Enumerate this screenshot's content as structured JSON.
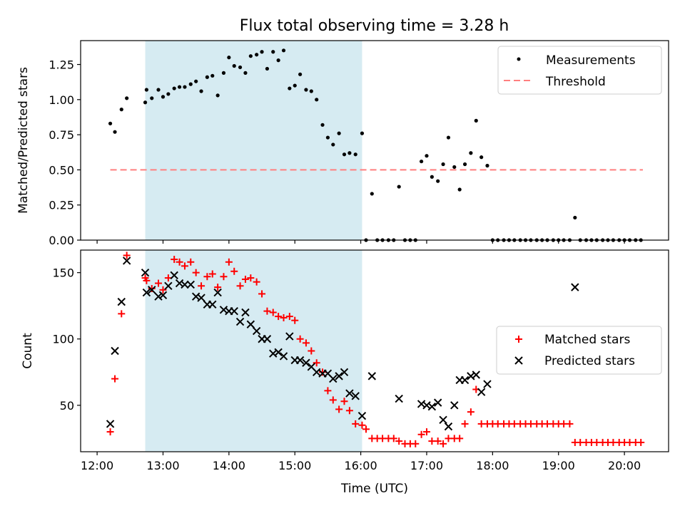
{
  "title": "Flux total observing time = 3.28 h",
  "shaded_window": {
    "start": 12.73,
    "end": 16.02,
    "color": "#add8e6"
  },
  "chart_data": [
    {
      "type": "scatter",
      "ylabel": "Matched/Predicted stars",
      "xlim": [
        11.75,
        20.67
      ],
      "ylim": [
        0,
        1.42
      ],
      "yticks": [
        0.0,
        0.25,
        0.5,
        0.75,
        1.0,
        1.25
      ],
      "ytick_labels": [
        "0.00",
        "0.25",
        "0.50",
        "0.75",
        "1.00",
        "1.25"
      ],
      "legend_position": "top-right",
      "threshold": {
        "name": "Threshold",
        "value": 0.5,
        "x_start": 12.2,
        "x_end": 20.28,
        "color": "#ff7f7f"
      },
      "series": [
        {
          "name": "Measurements",
          "color": "#000000",
          "x": [
            12.2,
            12.27,
            12.37,
            12.45,
            12.73,
            12.75,
            12.83,
            12.93,
            13.0,
            13.08,
            13.17,
            13.25,
            13.33,
            13.42,
            13.5,
            13.58,
            13.67,
            13.75,
            13.83,
            13.92,
            14.0,
            14.08,
            14.17,
            14.25,
            14.33,
            14.42,
            14.5,
            14.58,
            14.67,
            14.75,
            14.83,
            14.92,
            15.0,
            15.08,
            15.17,
            15.25,
            15.33,
            15.42,
            15.5,
            15.58,
            15.67,
            15.75,
            15.83,
            15.92,
            16.02,
            16.08,
            16.17,
            16.25,
            16.33,
            16.42,
            16.5,
            16.58,
            16.67,
            16.75,
            16.83,
            16.92,
            17.0,
            17.08,
            17.17,
            17.25,
            17.33,
            17.42,
            17.5,
            17.58,
            17.67,
            17.75,
            17.83,
            17.92,
            18.0,
            18.08,
            18.17,
            18.25,
            18.33,
            18.42,
            18.5,
            18.58,
            18.67,
            18.75,
            18.83,
            18.92,
            19.0,
            19.08,
            19.17,
            19.25,
            19.33,
            19.42,
            19.5,
            19.58,
            19.67,
            19.75,
            19.83,
            19.92,
            20.0,
            20.08,
            20.17,
            20.25
          ],
          "y": [
            0.83,
            0.77,
            0.93,
            1.01,
            0.98,
            1.07,
            1.01,
            1.07,
            1.02,
            1.04,
            1.08,
            1.09,
            1.09,
            1.11,
            1.13,
            1.06,
            1.16,
            1.17,
            1.03,
            1.19,
            1.3,
            1.24,
            1.23,
            1.19,
            1.31,
            1.32,
            1.34,
            1.22,
            1.34,
            1.28,
            1.35,
            1.08,
            1.1,
            1.18,
            1.07,
            1.06,
            1.0,
            0.82,
            0.73,
            0.68,
            0.76,
            0.61,
            0.62,
            0.61,
            0.76,
            0.0,
            0.33,
            0.0,
            0.0,
            0.0,
            0.0,
            0.38,
            0.0,
            0.0,
            0.0,
            0.56,
            0.6,
            0.45,
            0.42,
            0.54,
            0.73,
            0.52,
            0.36,
            0.54,
            0.62,
            0.85,
            0.59,
            0.53,
            0.0,
            0.0,
            0.0,
            0.0,
            0.0,
            0.0,
            0.0,
            0.0,
            0.0,
            0.0,
            0.0,
            0.0,
            0.0,
            0.0,
            0.0,
            0.16,
            0.0,
            0.0,
            0.0,
            0.0,
            0.0,
            0.0,
            0.0,
            0.0,
            0.0,
            0.0,
            0.0,
            0.0
          ]
        }
      ]
    },
    {
      "type": "scatter",
      "xlabel": "Time (UTC)",
      "ylabel": "Count",
      "xlim": [
        11.75,
        20.67
      ],
      "ylim": [
        15,
        167
      ],
      "xticks": [
        12,
        13,
        14,
        15,
        16,
        17,
        18,
        19,
        20
      ],
      "xtick_labels": [
        "12:00",
        "13:00",
        "14:00",
        "15:00",
        "16:00",
        "17:00",
        "18:00",
        "19:00",
        "20:00"
      ],
      "yticks": [
        50,
        100,
        150
      ],
      "ytick_labels": [
        "50",
        "100",
        "150"
      ],
      "legend_position": "center-right",
      "series": [
        {
          "name": "Matched stars",
          "marker": "+",
          "color": "#ff0000",
          "x": [
            12.2,
            12.27,
            12.37,
            12.45,
            12.73,
            12.75,
            12.83,
            12.93,
            13.0,
            13.08,
            13.17,
            13.25,
            13.33,
            13.42,
            13.5,
            13.58,
            13.67,
            13.75,
            13.83,
            13.92,
            14.0,
            14.08,
            14.17,
            14.25,
            14.33,
            14.42,
            14.5,
            14.58,
            14.67,
            14.75,
            14.83,
            14.92,
            15.0,
            15.08,
            15.17,
            15.25,
            15.33,
            15.42,
            15.5,
            15.58,
            15.67,
            15.75,
            15.83,
            15.92,
            16.02,
            16.08,
            16.17,
            16.25,
            16.33,
            16.42,
            16.5,
            16.58,
            16.67,
            16.75,
            16.83,
            16.92,
            17.0,
            17.08,
            17.17,
            17.25,
            17.33,
            17.42,
            17.5,
            17.58,
            17.67,
            17.75,
            17.83,
            17.92,
            18.0,
            18.08,
            18.17,
            18.25,
            18.33,
            18.42,
            18.5,
            18.58,
            18.67,
            18.75,
            18.83,
            18.92,
            19.0,
            19.08,
            19.17,
            19.25,
            19.33,
            19.42,
            19.5,
            19.58,
            19.67,
            19.75,
            19.83,
            19.92,
            20.0,
            20.08,
            20.17,
            20.25
          ],
          "y": [
            30,
            70,
            119,
            163,
            146,
            144,
            138,
            142,
            137,
            146,
            160,
            158,
            155,
            158,
            150,
            140,
            147,
            149,
            139,
            147,
            158,
            151,
            140,
            145,
            146,
            143,
            134,
            121,
            120,
            117,
            116,
            117,
            114,
            100,
            97,
            91,
            82,
            75,
            61,
            54,
            47,
            53,
            46,
            36,
            35,
            32,
            25,
            25,
            25,
            25,
            25,
            23,
            21,
            21,
            21,
            28,
            30,
            23,
            23,
            21,
            25,
            25,
            25,
            36,
            45,
            62,
            36,
            36,
            36,
            36,
            36,
            36,
            36,
            36,
            36,
            36,
            36,
            36,
            36,
            36,
            36,
            36,
            36,
            22,
            22,
            22,
            22,
            22,
            22,
            22,
            22,
            22,
            22,
            22,
            22,
            22
          ]
        },
        {
          "name": "Predicted stars",
          "marker": "x",
          "color": "#000000",
          "x": [
            12.2,
            12.27,
            12.37,
            12.45,
            12.73,
            12.75,
            12.83,
            12.93,
            13.0,
            13.08,
            13.17,
            13.25,
            13.33,
            13.42,
            13.5,
            13.58,
            13.67,
            13.75,
            13.83,
            13.92,
            14.0,
            14.08,
            14.17,
            14.25,
            14.33,
            14.42,
            14.5,
            14.58,
            14.67,
            14.75,
            14.83,
            14.92,
            15.0,
            15.08,
            15.17,
            15.25,
            15.33,
            15.42,
            15.5,
            15.58,
            15.67,
            15.75,
            15.83,
            15.92,
            16.02,
            16.17,
            16.58,
            16.92,
            17.0,
            17.08,
            17.17,
            17.25,
            17.33,
            17.42,
            17.5,
            17.58,
            17.67,
            17.75,
            17.83,
            17.92,
            19.25
          ],
          "y": [
            36,
            91,
            128,
            159,
            150,
            135,
            137,
            132,
            133,
            140,
            148,
            142,
            141,
            141,
            132,
            131,
            126,
            126,
            135,
            122,
            121,
            121,
            113,
            120,
            111,
            106,
            100,
            100,
            89,
            90,
            87,
            102,
            84,
            84,
            82,
            79,
            75,
            74,
            74,
            70,
            72,
            75,
            59,
            57,
            42,
            72,
            55,
            51,
            50,
            49,
            52,
            39,
            34,
            50,
            69,
            69,
            72,
            73,
            60,
            66,
            139
          ]
        }
      ]
    }
  ]
}
